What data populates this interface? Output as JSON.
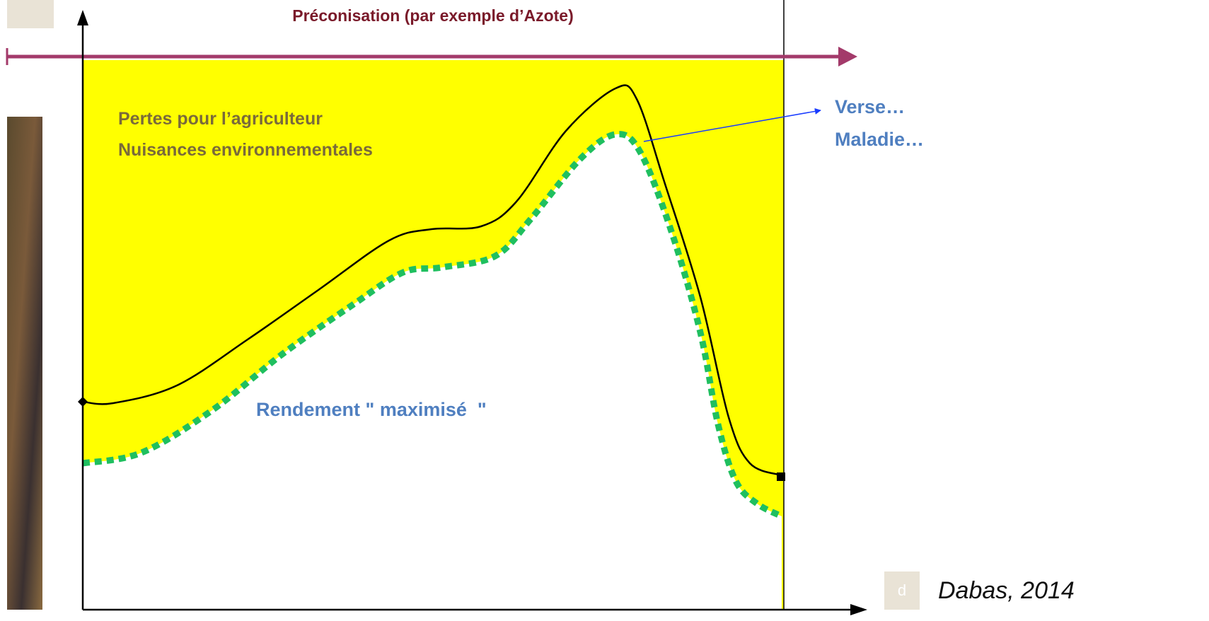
{
  "title": "Préconisation (par exemple d’Azote)",
  "zone_labels": {
    "losses": [
      "Pertes pour l’agriculteur",
      "Nuisances environnementales"
    ],
    "yield": "Rendement \" maximisé  \""
  },
  "risks": [
    "Verse…",
    "Maladie…"
  ],
  "corner_badge": "d",
  "source": "Dabas, 2014"
}
